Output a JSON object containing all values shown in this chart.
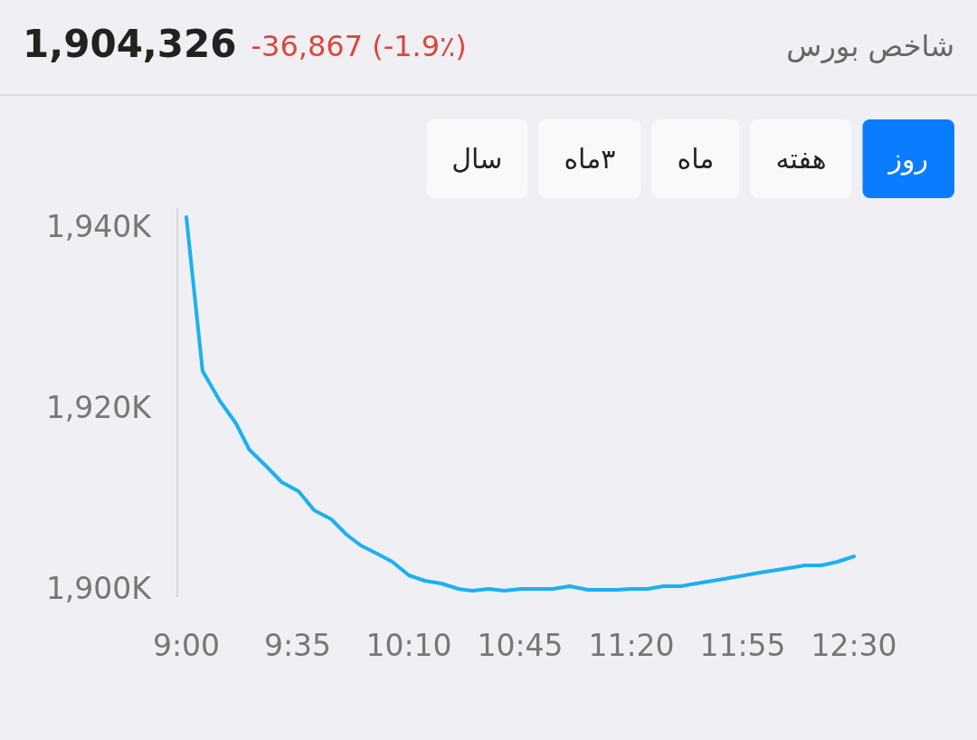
{
  "chart_data": {
    "type": "line",
    "title": "شاخص بورس",
    "subtitle": "1,904,326",
    "annotations": [
      "-36,867 (-1.9٪)",
      "سال",
      "۳ماه",
      "ماه",
      "هفته",
      "روز"
    ],
    "x": [
      9.0,
      9.085,
      9.175,
      9.26,
      9.33,
      9.417,
      9.5,
      9.588,
      9.67,
      9.76,
      9.84,
      9.915,
      10.0,
      10.08,
      10.167,
      10.25,
      10.337,
      10.427,
      10.5,
      10.584,
      10.667,
      10.754,
      10.92,
      11.01,
      11.105,
      11.257,
      11.333,
      11.418,
      11.5,
      11.59,
      11.674,
      11.845,
      12.006,
      12.158,
      12.243,
      12.33,
      12.414,
      12.5
    ],
    "series": [
      {
        "color": "#1cb0f0",
        "values": [
          1941,
          1924,
          1920.7,
          1918.2,
          1915.3,
          1913.5,
          1911.7,
          1910.7,
          1908.6,
          1907.6,
          1905.9,
          1904.7,
          1903.8,
          1902.9,
          1901.4,
          1900.8,
          1900.5,
          1899.9,
          1899.7,
          1899.9,
          1899.7,
          1899.9,
          1899.9,
          1900.2,
          1899.8,
          1899.8,
          1899.9,
          1899.9,
          1900.2,
          1900.2,
          1900.5,
          1901.1,
          1901.7,
          1902.2,
          1902.5,
          1902.5,
          1902.9,
          1903.5
        ]
      }
    ],
    "xlim": [
      9,
      12.5
    ],
    "ylim": [
      1899,
      1942
    ],
    "xticks": [
      {
        "value": 9,
        "label": "9:00"
      },
      {
        "value": 9.5833,
        "label": "9:35"
      },
      {
        "value": 10.1667,
        "label": "10:10"
      },
      {
        "value": 10.75,
        "label": "10:45"
      },
      {
        "value": 11.3333,
        "label": "11:20"
      },
      {
        "value": 11.9167,
        "label": "11:55"
      },
      {
        "value": 12.5,
        "label": "12:30"
      }
    ],
    "yticks": [
      {
        "value": 1900,
        "label": "1,900K"
      },
      {
        "value": 1920,
        "label": "1,920K"
      },
      {
        "value": 1940,
        "label": "1,940K"
      }
    ],
    "grid": false
  }
}
